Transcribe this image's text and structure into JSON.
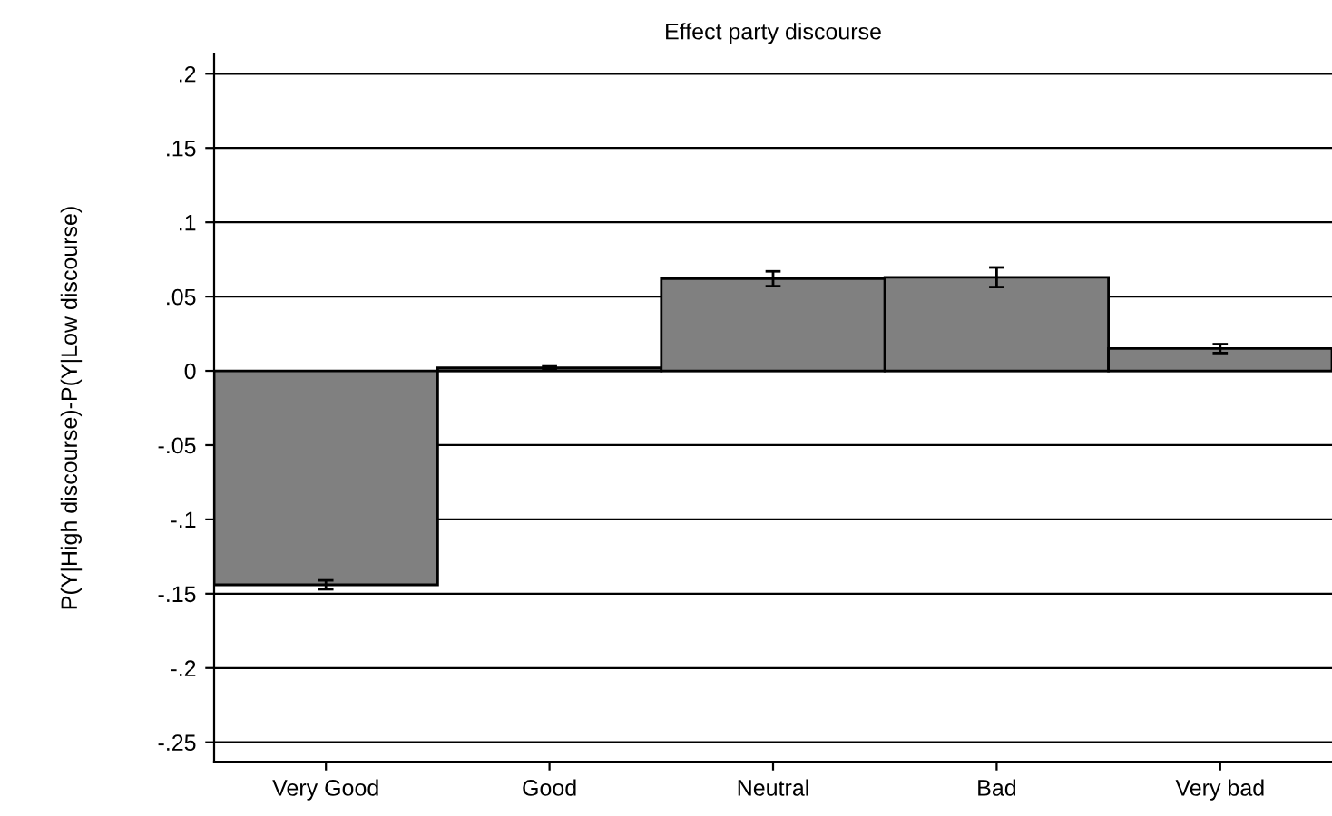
{
  "chart_data": {
    "type": "bar",
    "title": "Effect party discourse",
    "ylabel": "P(Y|High discourse)-P(Y|Low discourse)",
    "categories": [
      "Very Good",
      "Good",
      "Neutral",
      "Bad",
      "Very bad"
    ],
    "values": [
      -0.144,
      0.002,
      0.062,
      0.063,
      0.015
    ],
    "errors": [
      0.003,
      0.001,
      0.005,
      0.0066,
      0.003
    ],
    "color": "#808080",
    "ylim": [
      -0.263,
      0.213
    ],
    "yticks": [
      {
        "value": 0.2,
        "label": ".2"
      },
      {
        "value": 0.15,
        "label": ".15"
      },
      {
        "value": 0.1,
        "label": ".1"
      },
      {
        "value": 0.05,
        "label": ".05"
      },
      0,
      {
        "value": -0.05,
        "label": "-.05"
      },
      {
        "value": -0.1,
        "label": "-.1"
      },
      {
        "value": -0.15,
        "label": "-.15"
      },
      {
        "value": -0.2,
        "label": "-.2"
      },
      {
        "value": -0.25,
        "label": "-.25"
      }
    ],
    "grid": "y",
    "legend": false
  }
}
